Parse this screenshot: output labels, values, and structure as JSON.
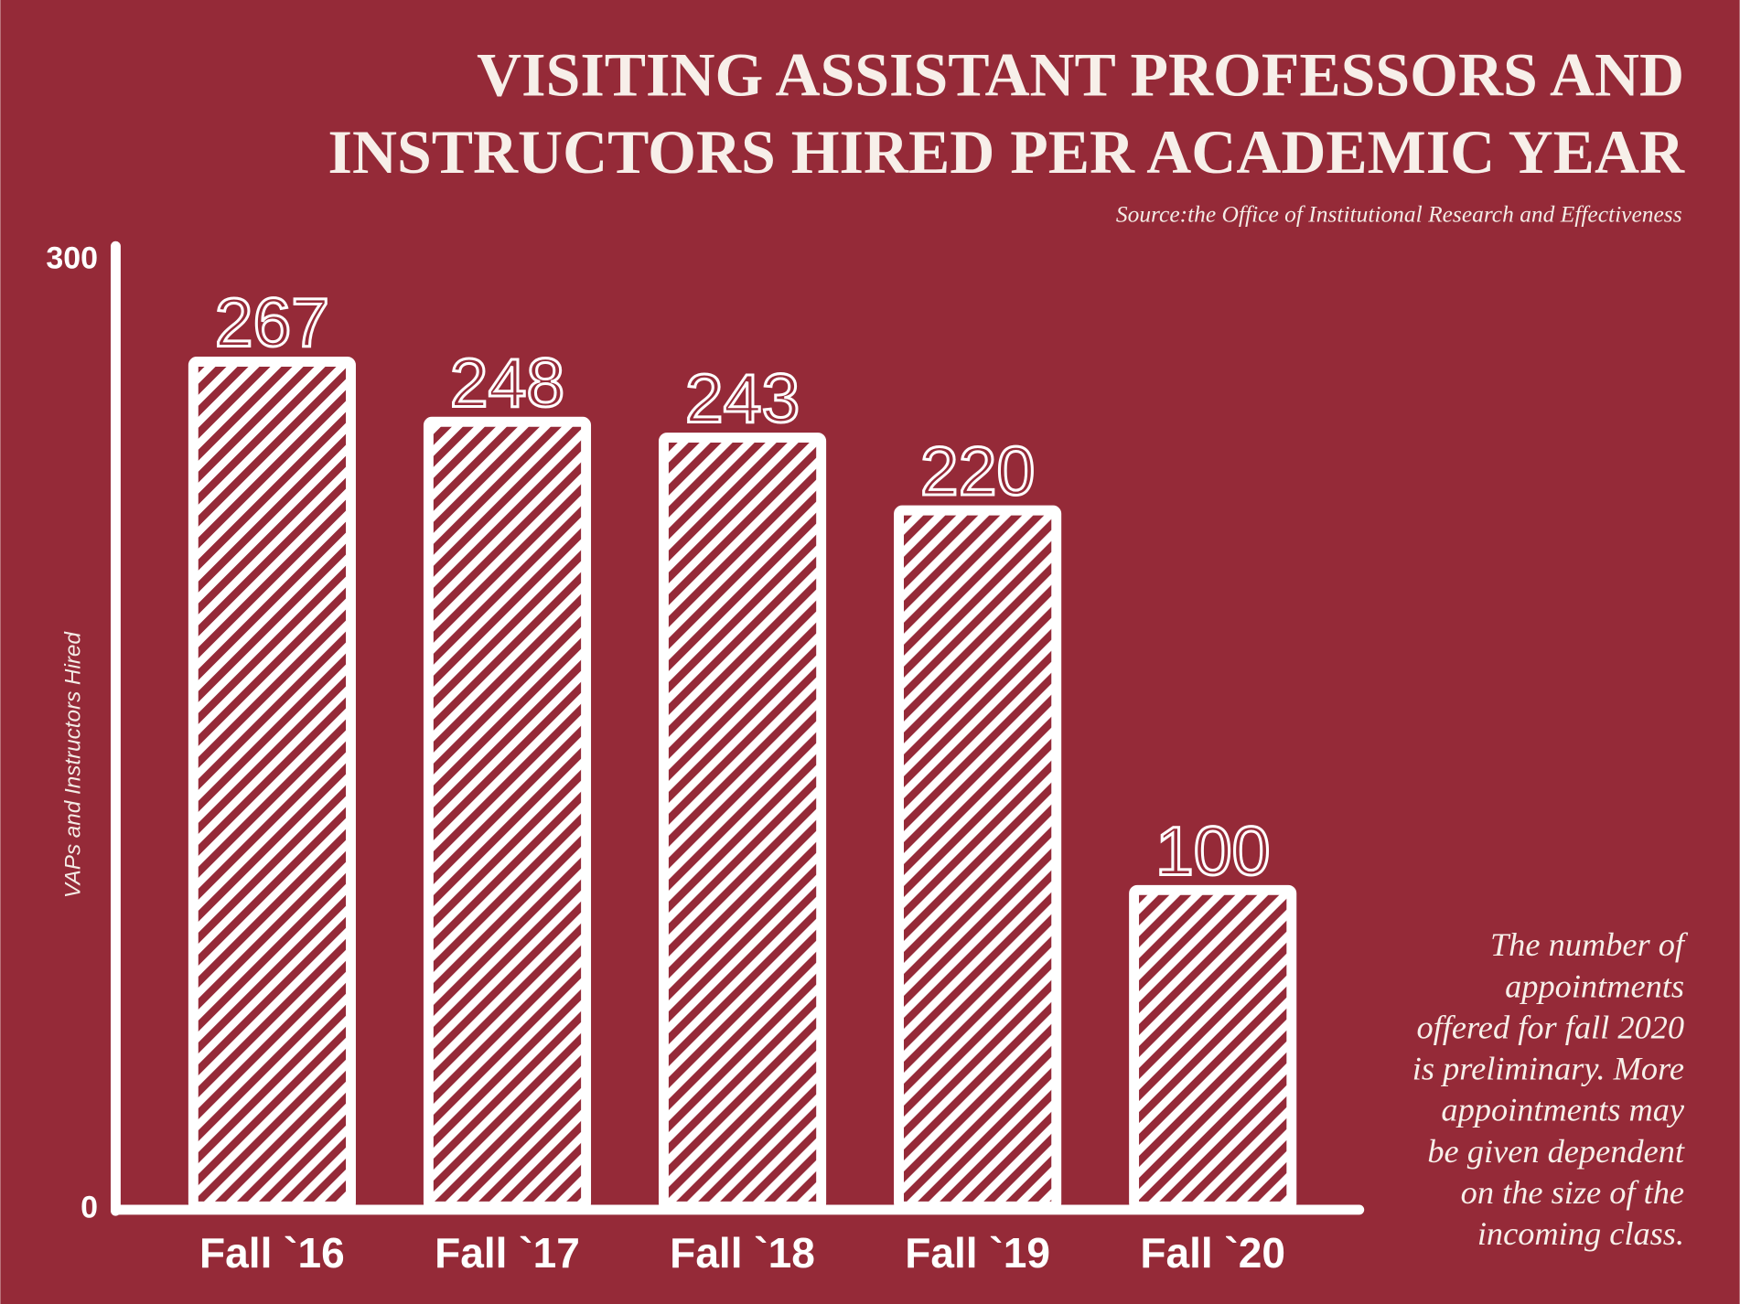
{
  "chart_data": {
    "type": "bar",
    "title": [
      "VISITING ASSISTANT PROFESSORS AND",
      "INSTRUCTORS HIRED PER ACADEMIC YEAR"
    ],
    "subtitle": "Source:the Office of Institutional Research and Effectiveness",
    "y_label": "VAPs and Instructors Hired",
    "categories": [
      "Fall `16",
      "Fall `17",
      "Fall `18",
      "Fall `19",
      "Fall `20"
    ],
    "values": [
      267,
      248,
      243,
      220,
      100
    ],
    "color": "#ffffff",
    "background": "#952a38",
    "ylim": [
      0,
      300
    ],
    "yticks": [
      0,
      300
    ],
    "grid": false,
    "annotation": [
      "The number of",
      "appointments",
      "offered for fall 2020",
      "is preliminary. More",
      "appointments may",
      "be given dependent",
      "on the size of the",
      "incoming class."
    ]
  }
}
